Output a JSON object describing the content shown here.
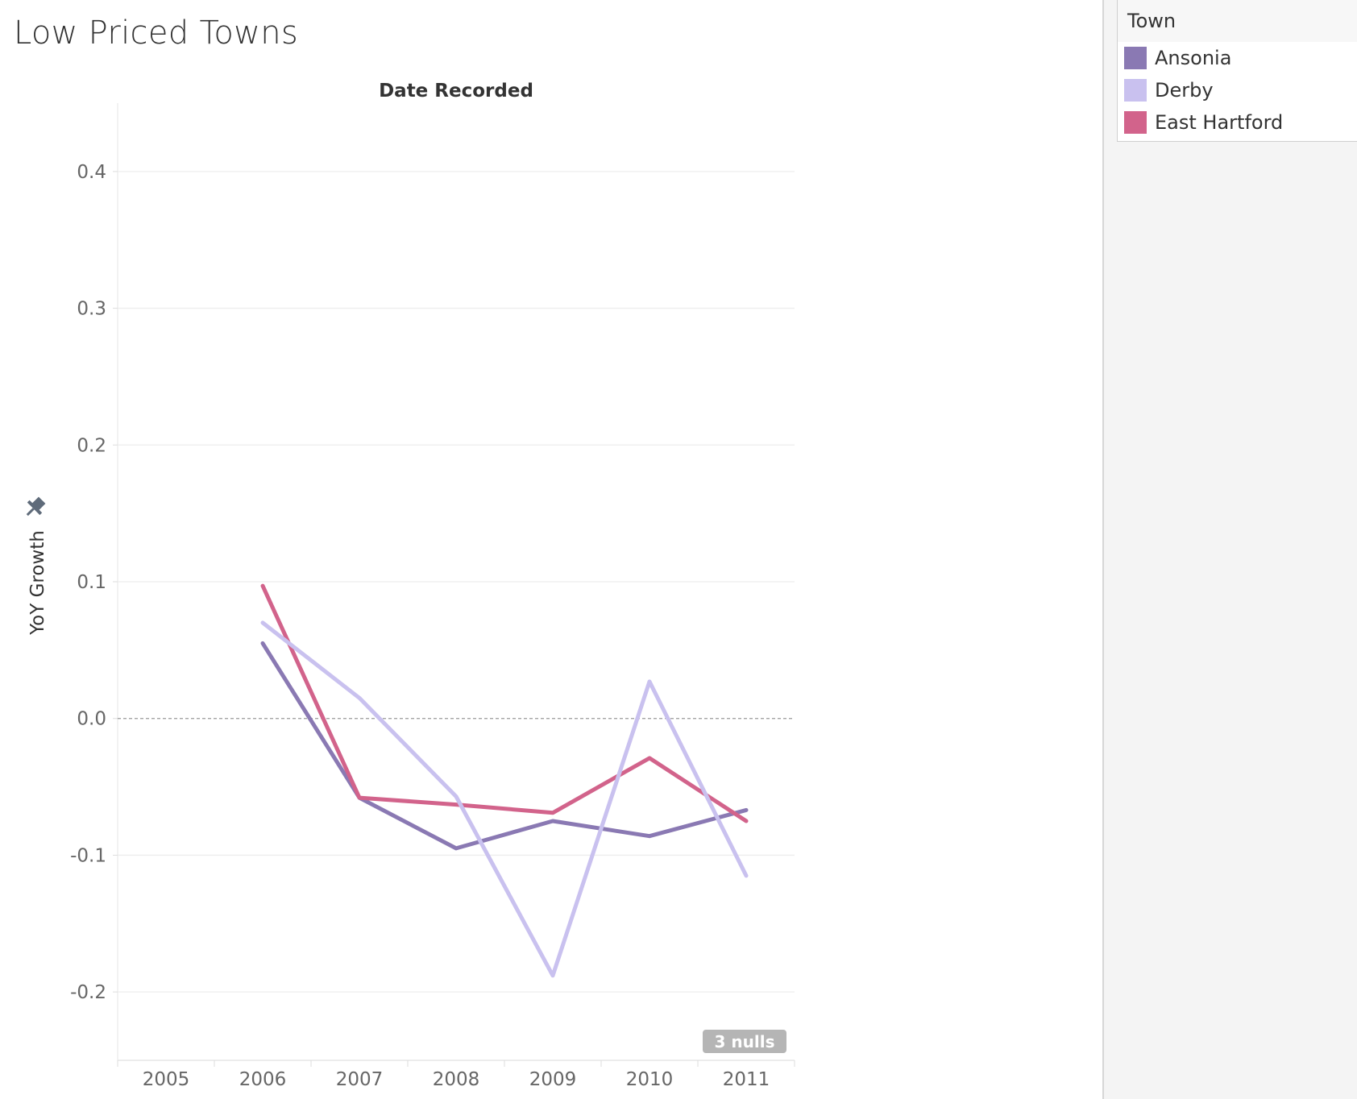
{
  "title": "Low Priced Towns",
  "legend": {
    "title": "Town",
    "items": [
      {
        "label": "Ansonia",
        "color": "#8a79b3"
      },
      {
        "label": "Derby",
        "color": "#c9c1ef"
      },
      {
        "label": "East Hartford",
        "color": "#d2638b"
      }
    ]
  },
  "nulls_badge": "3 nulls",
  "pin_icon": "pin-icon",
  "chart_data": {
    "type": "line",
    "title": "Low Priced Towns",
    "top_axis_label": "Date Recorded",
    "xlabel": "",
    "ylabel": "YoY Growth",
    "categories": [
      "2005",
      "2006",
      "2007",
      "2008",
      "2009",
      "2010",
      "2011"
    ],
    "yticks": [
      "0.4",
      "0.3",
      "0.2",
      "0.1",
      "0.0",
      "-0.1",
      "-0.2"
    ],
    "ytick_values": [
      0.4,
      0.3,
      0.2,
      0.1,
      0.0,
      -0.1,
      -0.2
    ],
    "ylim": [
      -0.25,
      0.45
    ],
    "grid": true,
    "zero_line": "dashed",
    "legend_position": "right",
    "series": [
      {
        "name": "Ansonia",
        "color": "#8a79b3",
        "values": [
          null,
          0.055,
          -0.058,
          -0.095,
          -0.075,
          -0.086,
          -0.067
        ]
      },
      {
        "name": "Derby",
        "color": "#c9c1ef",
        "values": [
          null,
          0.07,
          0.015,
          -0.057,
          -0.188,
          0.027,
          -0.115
        ]
      },
      {
        "name": "East Hartford",
        "color": "#d2638b",
        "values": [
          null,
          0.097,
          -0.058,
          -0.063,
          -0.069,
          -0.029,
          -0.075
        ]
      }
    ]
  }
}
